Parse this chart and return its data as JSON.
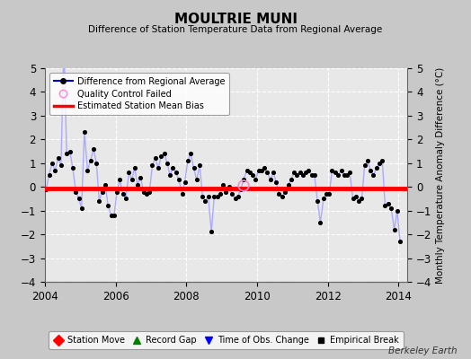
{
  "title": "MOULTRIE MUNI",
  "subtitle": "Difference of Station Temperature Data from Regional Average",
  "ylabel_right": "Monthly Temperature Anomaly Difference (°C)",
  "credit": "Berkeley Earth",
  "xlim": [
    2004.0,
    2014.25
  ],
  "ylim": [
    -4,
    5
  ],
  "yticks": [
    -4,
    -3,
    -2,
    -1,
    0,
    1,
    2,
    3,
    4,
    5
  ],
  "xticks": [
    2004,
    2006,
    2008,
    2010,
    2012,
    2014
  ],
  "bias_value": -0.05,
  "background_color": "#c8c8c8",
  "plot_bg_color": "#e8e8e8",
  "line_color": "#aaaaff",
  "dot_color": "#000000",
  "bias_color": "#ff0000",
  "times": [
    2004.04,
    2004.12,
    2004.21,
    2004.29,
    2004.38,
    2004.46,
    2004.54,
    2004.62,
    2004.71,
    2004.79,
    2004.88,
    2004.96,
    2005.04,
    2005.12,
    2005.21,
    2005.29,
    2005.38,
    2005.46,
    2005.54,
    2005.62,
    2005.71,
    2005.79,
    2005.88,
    2005.96,
    2006.04,
    2006.12,
    2006.21,
    2006.29,
    2006.38,
    2006.46,
    2006.54,
    2006.62,
    2006.71,
    2006.79,
    2006.88,
    2006.96,
    2007.04,
    2007.12,
    2007.21,
    2007.29,
    2007.38,
    2007.46,
    2007.54,
    2007.62,
    2007.71,
    2007.79,
    2007.88,
    2007.96,
    2008.04,
    2008.12,
    2008.21,
    2008.29,
    2008.38,
    2008.46,
    2008.54,
    2008.62,
    2008.71,
    2008.79,
    2008.88,
    2008.96,
    2009.04,
    2009.12,
    2009.21,
    2009.29,
    2009.38,
    2009.46,
    2009.54,
    2009.62,
    2009.71,
    2009.79,
    2009.88,
    2009.96,
    2010.04,
    2010.12,
    2010.21,
    2010.29,
    2010.38,
    2010.46,
    2010.54,
    2010.62,
    2010.71,
    2010.79,
    2010.88,
    2010.96,
    2011.04,
    2011.12,
    2011.21,
    2011.29,
    2011.38,
    2011.46,
    2011.54,
    2011.62,
    2011.71,
    2011.79,
    2011.88,
    2011.96,
    2012.04,
    2012.12,
    2012.21,
    2012.29,
    2012.38,
    2012.46,
    2012.54,
    2012.62,
    2012.71,
    2012.79,
    2012.88,
    2012.96,
    2013.04,
    2013.12,
    2013.21,
    2013.29,
    2013.38,
    2013.46,
    2013.54,
    2013.62,
    2013.71,
    2013.79,
    2013.88,
    2013.96,
    2014.04
  ],
  "values": [
    -0.1,
    0.5,
    1.0,
    0.7,
    1.2,
    0.9,
    6.0,
    1.4,
    1.5,
    0.8,
    -0.2,
    -0.5,
    -0.9,
    2.3,
    0.7,
    1.1,
    1.6,
    1.0,
    -0.6,
    -0.2,
    0.1,
    -0.8,
    -1.2,
    -1.2,
    -0.2,
    0.3,
    -0.3,
    -0.5,
    0.6,
    0.3,
    0.8,
    0.1,
    0.4,
    -0.2,
    -0.3,
    -0.2,
    0.9,
    1.2,
    0.8,
    1.3,
    1.4,
    1.0,
    0.5,
    0.8,
    0.6,
    0.3,
    -0.3,
    0.2,
    1.1,
    1.4,
    0.8,
    0.3,
    0.9,
    -0.4,
    -0.6,
    -0.4,
    -1.9,
    -0.4,
    -0.4,
    -0.3,
    0.1,
    -0.2,
    0.0,
    -0.3,
    -0.5,
    -0.4,
    -0.1,
    0.3,
    0.7,
    0.6,
    0.5,
    0.3,
    0.7,
    0.7,
    0.8,
    0.6,
    0.3,
    0.6,
    0.2,
    -0.3,
    -0.4,
    -0.2,
    0.1,
    0.3,
    0.6,
    0.5,
    0.6,
    0.5,
    0.6,
    0.7,
    0.5,
    0.5,
    -0.6,
    -1.5,
    -0.5,
    -0.3,
    -0.3,
    0.7,
    0.6,
    0.5,
    0.7,
    0.5,
    0.5,
    0.6,
    -0.5,
    -0.4,
    -0.6,
    -0.5,
    0.9,
    1.1,
    0.7,
    0.5,
    0.8,
    1.0,
    1.1,
    -0.8,
    -0.7,
    -0.9,
    -1.8,
    -1.0,
    -2.3
  ],
  "qc_failed_x": [
    2009.62
  ],
  "qc_failed_y": [
    0.05
  ]
}
